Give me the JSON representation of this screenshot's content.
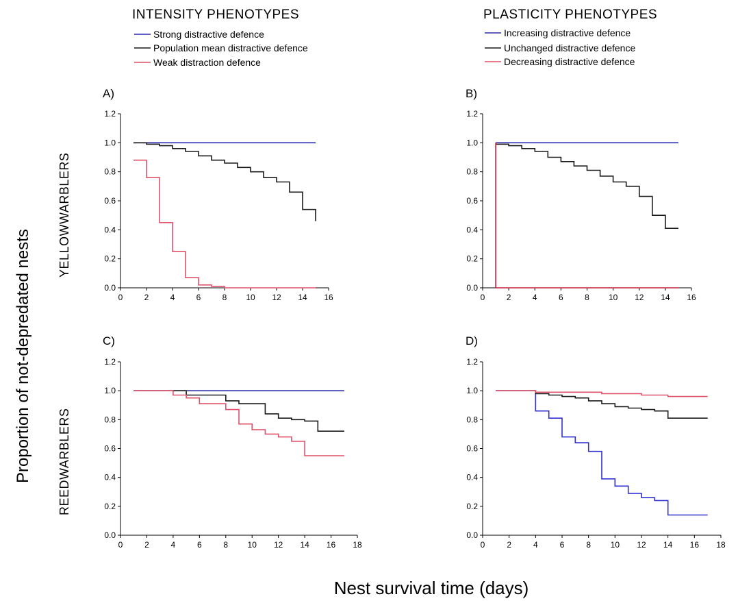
{
  "figure": {
    "left_column_title": "INTENSITY PHENOTYPES",
    "right_column_title": "PLASTICITY PHENOTYPES",
    "left_legend": [
      {
        "label": "Strong distractive defence",
        "color": "#2b2bb0"
      },
      {
        "label": "Population mean distractive defence",
        "color": "#1a1a1a"
      },
      {
        "label": "Weak distraction defence",
        "color": "#e0506a"
      }
    ],
    "right_legend": [
      {
        "label": "Increasing distractive defence",
        "color": "#2b2bb0"
      },
      {
        "label": "Unchanged distractive defence",
        "color": "#1a1a1a"
      },
      {
        "label": "Decreasing distractive defence",
        "color": "#e0506a"
      }
    ],
    "top_row_label": "YELLOWWARBLERS",
    "bottom_row_label": "REEDWARBLERS",
    "y_axis_title": "Proportion of not-depredated nests",
    "x_axis_title": "Nest survival time (days)"
  },
  "chart_data": [
    {
      "type": "line",
      "step": true,
      "panel": "A)",
      "xlim": [
        0,
        16
      ],
      "ylim": [
        0,
        1.2
      ],
      "xticks": [
        0,
        2,
        4,
        6,
        8,
        10,
        12,
        14,
        16
      ],
      "yticks": [
        0.0,
        0.2,
        0.4,
        0.6,
        0.8,
        1.0,
        1.2
      ],
      "series": [
        {
          "name": "Strong distractive defence",
          "color": "#2b2bb0",
          "x": [
            1,
            15
          ],
          "y": [
            1.0,
            1.0
          ]
        },
        {
          "name": "Population mean distractive defence",
          "color": "#1a1a1a",
          "x": [
            1,
            2,
            3,
            4,
            5,
            6,
            7,
            8,
            9,
            10,
            11,
            12,
            13,
            14,
            15
          ],
          "y": [
            1.0,
            0.99,
            0.98,
            0.96,
            0.94,
            0.91,
            0.88,
            0.86,
            0.83,
            0.8,
            0.76,
            0.73,
            0.66,
            0.54,
            0.46
          ]
        },
        {
          "name": "Weak distraction defence",
          "color": "#e0506a",
          "x": [
            1,
            2,
            3,
            4,
            5,
            6,
            7,
            8,
            9,
            15
          ],
          "y": [
            0.88,
            0.76,
            0.45,
            0.25,
            0.07,
            0.02,
            0.01,
            0.0,
            0.0,
            0.0
          ]
        }
      ]
    },
    {
      "type": "line",
      "step": true,
      "panel": "B)",
      "xlim": [
        0,
        16
      ],
      "ylim": [
        0,
        1.2
      ],
      "xticks": [
        0,
        2,
        4,
        6,
        8,
        10,
        12,
        14,
        16
      ],
      "yticks": [
        0.0,
        0.2,
        0.4,
        0.6,
        0.8,
        1.0,
        1.2
      ],
      "series": [
        {
          "name": "Increasing distractive defence",
          "color": "#2b2bb0",
          "x": [
            1,
            15
          ],
          "y": [
            1.0,
            1.0
          ]
        },
        {
          "name": "Unchanged distractive defence",
          "color": "#1a1a1a",
          "x": [
            1,
            2,
            3,
            4,
            5,
            6,
            7,
            8,
            9,
            10,
            11,
            12,
            13,
            14,
            15
          ],
          "y": [
            0.99,
            0.98,
            0.96,
            0.94,
            0.9,
            0.87,
            0.84,
            0.81,
            0.77,
            0.73,
            0.7,
            0.63,
            0.5,
            0.41,
            0.41
          ]
        },
        {
          "name": "Decreasing distractive defence",
          "color": "#c0203a",
          "x": [
            1,
            15
          ],
          "y": [
            0.0,
            0.0
          ],
          "start_at": 1.0
        }
      ]
    },
    {
      "type": "line",
      "step": true,
      "panel": "C)",
      "xlim": [
        0,
        18
      ],
      "ylim": [
        0,
        1.2
      ],
      "xticks": [
        0,
        2,
        4,
        6,
        8,
        10,
        12,
        14,
        16,
        18
      ],
      "yticks": [
        0.0,
        0.2,
        0.4,
        0.6,
        0.8,
        1.0,
        1.2
      ],
      "series": [
        {
          "name": "Strong distractive defence",
          "color": "#2b2bb0",
          "x": [
            1,
            17
          ],
          "y": [
            1.0,
            1.0
          ]
        },
        {
          "name": "Population mean distractive defence",
          "color": "#1a1a1a",
          "x": [
            1,
            5,
            8,
            9,
            11,
            12,
            13,
            14,
            15,
            17
          ],
          "y": [
            1.0,
            0.97,
            0.93,
            0.91,
            0.84,
            0.81,
            0.8,
            0.79,
            0.72,
            0.72
          ]
        },
        {
          "name": "Weak distraction defence",
          "color": "#e0506a",
          "x": [
            1,
            4,
            5,
            6,
            8,
            9,
            10,
            11,
            12,
            13,
            14,
            17
          ],
          "y": [
            1.0,
            0.97,
            0.95,
            0.91,
            0.87,
            0.77,
            0.73,
            0.7,
            0.68,
            0.65,
            0.55,
            0.55
          ]
        }
      ]
    },
    {
      "type": "line",
      "step": true,
      "panel": "D)",
      "xlim": [
        0,
        18
      ],
      "ylim": [
        0,
        1.2
      ],
      "xticks": [
        0,
        2,
        4,
        6,
        8,
        10,
        12,
        14,
        16,
        18
      ],
      "yticks": [
        0.0,
        0.2,
        0.4,
        0.6,
        0.8,
        1.0,
        1.2
      ],
      "series": [
        {
          "name": "Increasing distractive defence",
          "color": "#3030d0",
          "x": [
            1,
            4,
            5,
            6,
            7,
            8,
            9,
            10,
            11,
            12,
            13,
            14,
            17
          ],
          "y": [
            1.0,
            0.86,
            0.81,
            0.68,
            0.64,
            0.58,
            0.39,
            0.34,
            0.29,
            0.26,
            0.24,
            0.14,
            0.14
          ]
        },
        {
          "name": "Unchanged distractive defence",
          "color": "#1a1a1a",
          "x": [
            1,
            4,
            5,
            6,
            7,
            8,
            9,
            10,
            11,
            12,
            13,
            14,
            17
          ],
          "y": [
            1.0,
            0.98,
            0.97,
            0.96,
            0.95,
            0.93,
            0.91,
            0.89,
            0.88,
            0.87,
            0.86,
            0.81,
            0.81
          ]
        },
        {
          "name": "Decreasing distractive defence",
          "color": "#e0506a",
          "x": [
            1,
            4,
            8,
            9,
            10,
            12,
            14,
            17
          ],
          "y": [
            1.0,
            0.99,
            0.99,
            0.98,
            0.98,
            0.97,
            0.96,
            0.96
          ]
        }
      ]
    }
  ]
}
